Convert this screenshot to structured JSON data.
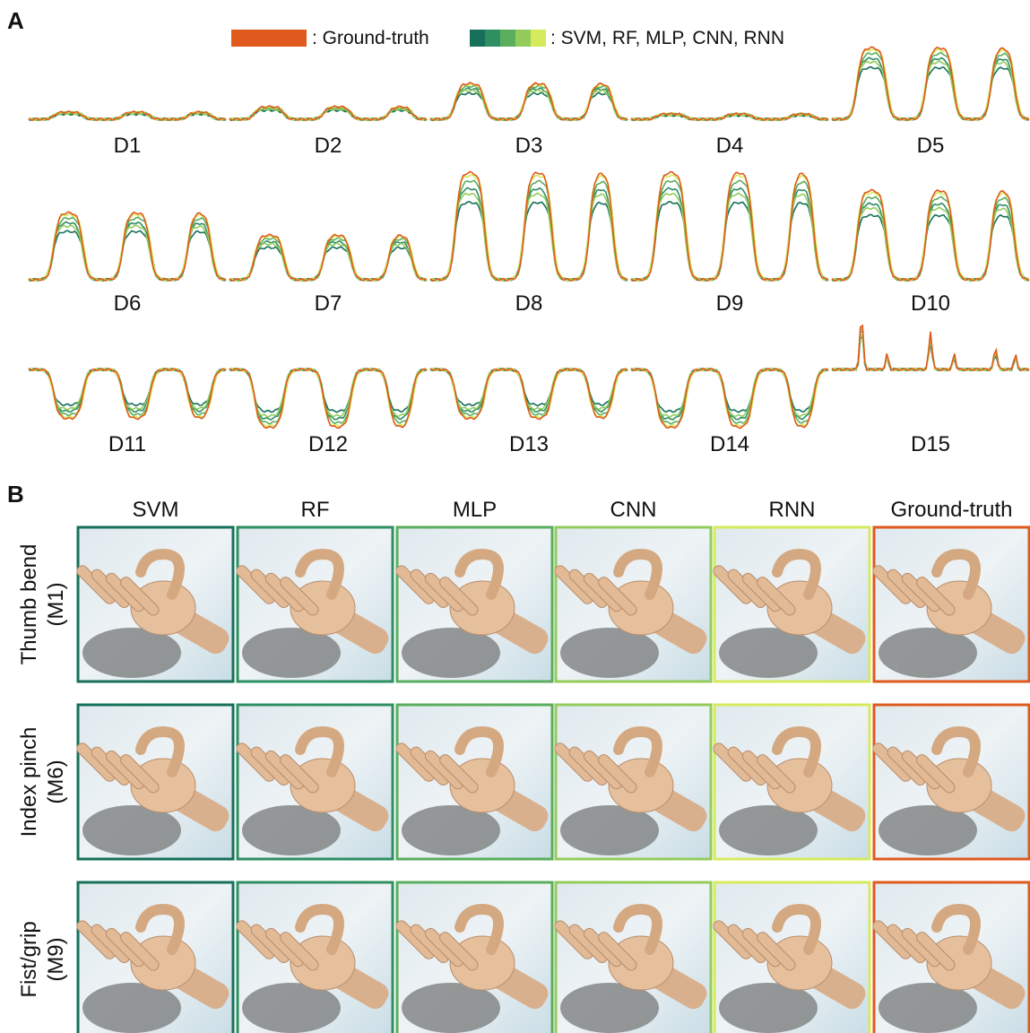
{
  "panel_a": {
    "label": "A",
    "legend": {
      "ground_truth": ": Ground-truth",
      "models": ": SVM, RF, MLP, CNN, RNN"
    },
    "plots": [
      "D1",
      "D2",
      "D3",
      "D4",
      "D5",
      "D6",
      "D7",
      "D8",
      "D9",
      "D10",
      "D11",
      "D12",
      "D13",
      "D14",
      "D15"
    ]
  },
  "panel_b": {
    "label": "B",
    "columns": [
      "SVM",
      "RF",
      "MLP",
      "CNN",
      "RNN",
      "Ground-truth"
    ],
    "rows": [
      {
        "name": "Thumb bend",
        "code": "(M1)"
      },
      {
        "name": "Index pinch",
        "code": "(M6)"
      },
      {
        "name": "Fist/grip",
        "code": "(M9)"
      }
    ]
  }
}
